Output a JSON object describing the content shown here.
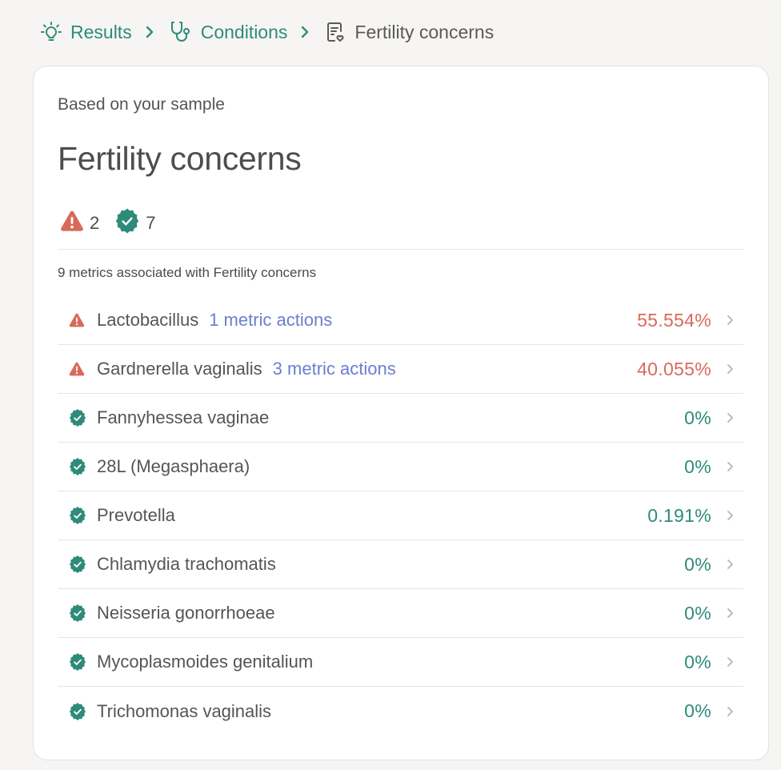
{
  "breadcrumb": {
    "items": [
      {
        "label": "Results",
        "icon": "lightbulb-icon"
      },
      {
        "label": "Conditions",
        "icon": "stethoscope-icon"
      },
      {
        "label": "Fertility concerns",
        "icon": "clipboard-heart-icon"
      }
    ]
  },
  "card": {
    "eyebrow": "Based on your sample",
    "title": "Fertility concerns",
    "summary": {
      "warning_count": "2",
      "ok_count": "7"
    },
    "metrics_caption": "9 metrics associated with Fertility concerns"
  },
  "colors": {
    "accent": "#2e8b7a",
    "warning": "#d86a5c",
    "link": "#6a7fcf"
  },
  "metrics": [
    {
      "name": "Lactobacillus",
      "actions": "1 metric actions",
      "value": "55.554%",
      "status": "warning"
    },
    {
      "name": "Gardnerella vaginalis",
      "actions": "3 metric actions",
      "value": "40.055%",
      "status": "warning"
    },
    {
      "name": "Fannyhessea vaginae",
      "actions": "",
      "value": "0%",
      "status": "ok"
    },
    {
      "name": "28L (Megasphaera)",
      "actions": "",
      "value": "0%",
      "status": "ok"
    },
    {
      "name": "Prevotella",
      "actions": "",
      "value": "0.191%",
      "status": "ok"
    },
    {
      "name": "Chlamydia trachomatis",
      "actions": "",
      "value": "0%",
      "status": "ok"
    },
    {
      "name": "Neisseria gonorrhoeae",
      "actions": "",
      "value": "0%",
      "status": "ok"
    },
    {
      "name": "Mycoplasmoides genitalium",
      "actions": "",
      "value": "0%",
      "status": "ok"
    },
    {
      "name": "Trichomonas vaginalis",
      "actions": "",
      "value": "0%",
      "status": "ok"
    }
  ]
}
